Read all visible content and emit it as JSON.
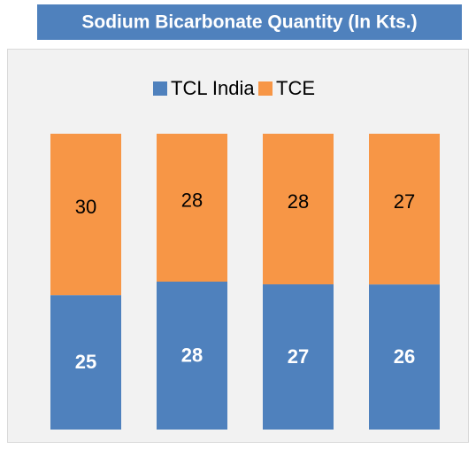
{
  "chart_data": {
    "type": "bar",
    "stacking": "percent",
    "title": "Sodium Bicarbonate Quantity (In Kts.)",
    "categories": [
      null,
      null,
      null,
      null
    ],
    "series": [
      {
        "name": "TCL India",
        "color": "#4f81bd",
        "values": [
          25,
          28,
          27,
          26
        ]
      },
      {
        "name": "TCE",
        "color": "#f79646",
        "values": [
          30,
          28,
          28,
          27
        ]
      }
    ],
    "legend": "top"
  }
}
